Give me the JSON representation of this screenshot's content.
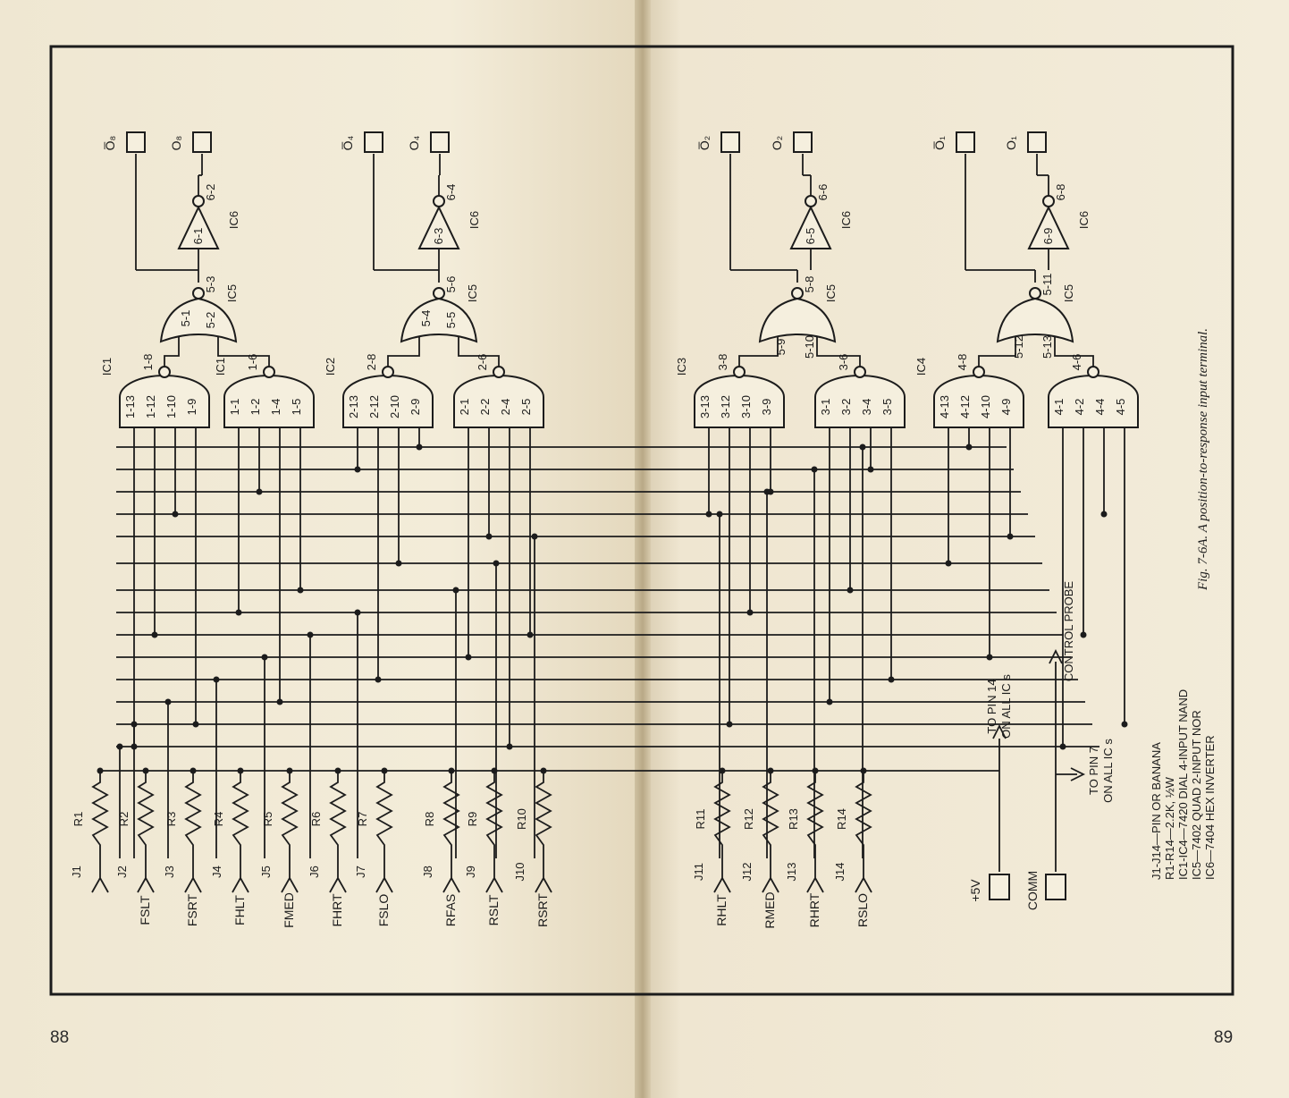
{
  "pages": {
    "left_number": "88",
    "right_number": "89"
  },
  "caption": "Fig. 7-6A. A position-to-response input terminal.",
  "outputs": [
    {
      "label": "O̅₈"
    },
    {
      "label": "O₈"
    },
    {
      "label": "O̅₄"
    },
    {
      "label": "O₄"
    },
    {
      "label": "O̅₂"
    },
    {
      "label": "O₂"
    },
    {
      "label": "O̅₁"
    },
    {
      "label": "O₁"
    }
  ],
  "inverters": [
    {
      "name": "6-1",
      "out": "6-2",
      "ic": "IC6"
    },
    {
      "name": "6-3",
      "out": "6-4",
      "ic": "IC6"
    },
    {
      "name": "6-5",
      "out": "6-6",
      "ic": "IC6"
    },
    {
      "name": "6-9",
      "out": "6-8",
      "ic": "IC6"
    }
  ],
  "nor_gates": [
    {
      "name": "5-1",
      "out": "5-3",
      "in": "5-2",
      "ic": "IC5"
    },
    {
      "name": "5-4",
      "out": "5-6",
      "in": "5-5",
      "ic": "IC5"
    },
    {
      "in_a": "5-9",
      "out": "5-8",
      "in_b": "5-10",
      "ic": "IC5"
    },
    {
      "in_a": "5-12",
      "out": "5-11",
      "in_b": "5-13",
      "ic": "IC5"
    }
  ],
  "nand_gates": [
    {
      "out": "1-8",
      "pins": [
        "1-13",
        "1-12",
        "1-10",
        "1-9"
      ],
      "ic": "IC1"
    },
    {
      "out": "1-6",
      "pins": [
        "1-1",
        "1-2",
        "1-4",
        "1-5"
      ],
      "ic": "IC1"
    },
    {
      "out": "2-8",
      "pins": [
        "2-13",
        "2-12",
        "2-10",
        "2-9"
      ],
      "ic": "IC2"
    },
    {
      "out": "2-6",
      "pins": [
        "2-1",
        "2-2",
        "2-4",
        "2-5"
      ],
      "ic": ""
    },
    {
      "out": "3-8",
      "pins": [
        "3-13",
        "3-12",
        "3-10",
        "3-9"
      ],
      "ic": "IC3"
    },
    {
      "out": "3-6",
      "pins": [
        "3-1",
        "3-2",
        "3-4",
        "3-5"
      ],
      "ic": ""
    },
    {
      "out": "4-8",
      "pins": [
        "4-13",
        "4-12",
        "4-10",
        "4-9"
      ],
      "ic": "IC4"
    },
    {
      "out": "4-6",
      "pins": [
        "4-1",
        "4-2",
        "4-4",
        "4-5"
      ],
      "ic": ""
    }
  ],
  "inputs": [
    {
      "resistor": "R1",
      "jack": "J1",
      "name": ""
    },
    {
      "resistor": "R2",
      "jack": "J2",
      "name": "FSLT"
    },
    {
      "resistor": "R3",
      "jack": "J3",
      "name": "FSRT"
    },
    {
      "resistor": "R4",
      "jack": "J4",
      "name": "FHLT"
    },
    {
      "resistor": "R5",
      "jack": "J5",
      "name": "FMED"
    },
    {
      "resistor": "R6",
      "jack": "J6",
      "name": "FHRT"
    },
    {
      "resistor": "R7",
      "jack": "J7",
      "name": "FSLO"
    },
    {
      "resistor": "R8",
      "jack": "J8",
      "name": "RFAS"
    },
    {
      "resistor": "R9",
      "jack": "J9",
      "name": "RSLT"
    },
    {
      "resistor": "R10",
      "jack": "J10",
      "name": "RSRT"
    },
    {
      "resistor": "R11",
      "jack": "J11",
      "name": "RHLT"
    },
    {
      "resistor": "R12",
      "jack": "J12",
      "name": "RMED"
    },
    {
      "resistor": "R13",
      "jack": "J13",
      "name": "RHRT"
    },
    {
      "resistor": "R14",
      "jack": "J14",
      "name": "RSLO"
    }
  ],
  "power": {
    "plus5v": "+5V",
    "comm": "COMM",
    "pin14_line1": "TO PIN 14",
    "pin14_line2": "ON ALL IC s",
    "pin7_line1": "TO PIN 7",
    "pin7_line2": "ON ALL IC s",
    "probe": "CONTROL PROBE"
  },
  "legend": [
    "J1-J14—PIN OR BANANA",
    "R1-R14—2.2K, ½W",
    "IC1-IC4—7420 DIAL 4-INPUT NAND",
    "IC5—7402 QUAD 2-INPUT NOR",
    "IC6—7404 HEX INVERTER"
  ]
}
